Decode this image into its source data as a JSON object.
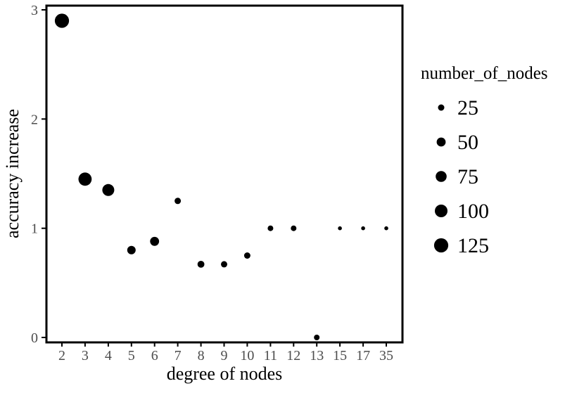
{
  "chart_data": {
    "type": "scatter",
    "title": "",
    "xlabel": "degree of nodes",
    "ylabel": "accuracy increase",
    "legend_title": "number_of_nodes",
    "legend_position": "right",
    "grid": false,
    "point_color": "#000000",
    "panel_border_color": "#000000",
    "tick_label_color": "#4d4d4d",
    "x_categories": [
      "2",
      "3",
      "4",
      "5",
      "6",
      "7",
      "8",
      "9",
      "10",
      "11",
      "12",
      "13",
      "15",
      "17",
      "35"
    ],
    "y_ticks": [
      0,
      1,
      2,
      3
    ],
    "ylim": [
      0,
      3
    ],
    "size_legend": [
      25,
      50,
      75,
      100,
      125
    ],
    "points": [
      {
        "x": "2",
        "y": 2.9,
        "n": 125
      },
      {
        "x": "3",
        "y": 1.45,
        "n": 110
      },
      {
        "x": "4",
        "y": 1.35,
        "n": 90
      },
      {
        "x": "5",
        "y": 0.8,
        "n": 45
      },
      {
        "x": "6",
        "y": 0.88,
        "n": 50
      },
      {
        "x": "7",
        "y": 1.25,
        "n": 25
      },
      {
        "x": "8",
        "y": 0.67,
        "n": 30
      },
      {
        "x": "9",
        "y": 0.67,
        "n": 25
      },
      {
        "x": "10",
        "y": 0.75,
        "n": 25
      },
      {
        "x": "11",
        "y": 1.0,
        "n": 20
      },
      {
        "x": "12",
        "y": 1.0,
        "n": 20
      },
      {
        "x": "13",
        "y": 0.0,
        "n": 20
      },
      {
        "x": "15",
        "y": 1.0,
        "n": 10
      },
      {
        "x": "17",
        "y": 1.0,
        "n": 10
      },
      {
        "x": "35",
        "y": 1.0,
        "n": 10
      }
    ]
  }
}
